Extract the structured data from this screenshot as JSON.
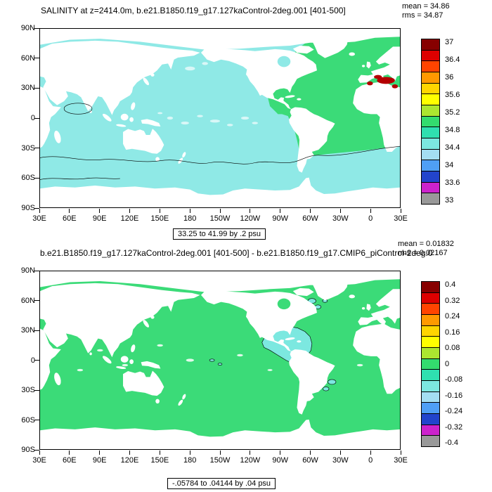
{
  "palette": [
    "#870000",
    "#DD0000",
    "#FF4400",
    "#FF9900",
    "#FFD500",
    "#FFFF00",
    "#ACE630",
    "#33DC6E",
    "#2FE0B0",
    "#7CE8E0",
    "#A4DEF2",
    "#4F9FF5",
    "#2244CC",
    "#CC22CC",
    "#999999"
  ],
  "map_colors": {
    "pacific": "#8FE9E6",
    "atlantic": "#3BDB78",
    "diff_base": "#3BDB78",
    "diff_anom": "#7CE8E0",
    "land": "#FFFFFF",
    "high": "#B30000",
    "speckle_top": "#D9F7F7",
    "speckle_bottom": "#FFFFFF"
  },
  "top_plot": {
    "title": "SALINITY at z=2414.0m, b.e21.B1850.f19_g17.127kaControl-2deg.001 [401-500]",
    "mean": "mean = 34.86",
    "rms": "rms = 34.87",
    "range_label": "33.25 to 41.99 by .2 psu",
    "y_ticks": [
      "90N",
      "60N",
      "30N",
      "0",
      "30S",
      "60S",
      "90S"
    ],
    "x_ticks": [
      "30E",
      "60E",
      "90E",
      "120E",
      "150E",
      "180",
      "150W",
      "120W",
      "90W",
      "60W",
      "30W",
      "0",
      "30E"
    ],
    "colorbar_labels": [
      "37",
      "36.4",
      "36",
      "35.6",
      "35.2",
      "34.8",
      "34.4",
      "34",
      "33.6",
      "33"
    ]
  },
  "bottom_plot": {
    "title": "b.e21.B1850.f19_g17.127kaControl-2deg.001 [401-500] - b.e21.B1850.f19_g17.CMIP6_piControl-2deg.0",
    "mean": "mean = 0.01832",
    "rms": "rms = 0.02167",
    "range_label": "-.05784 to .04144 by .04 psu",
    "y_ticks": [
      "90N",
      "60N",
      "30N",
      "0",
      "30S",
      "60S",
      "90S"
    ],
    "x_ticks": [
      "30E",
      "60E",
      "90E",
      "120E",
      "150E",
      "180",
      "150W",
      "120W",
      "90W",
      "60W",
      "30W",
      "0",
      "30E"
    ],
    "colorbar_labels": [
      "0.4",
      "0.32",
      "0.24",
      "0.16",
      "0.08",
      "0",
      "-0.08",
      "-0.16",
      "-0.24",
      "-0.32",
      "-0.4"
    ]
  },
  "chart_data": [
    {
      "type": "heatmap",
      "title": "SALINITY at z=2414.0m, b.e21.B1850.f19_g17.127kaControl-2deg.001 [401-500]",
      "projection": "cylindrical equidistant world map, longitude 30E eastward around to 30E, latitude 90S to 90N",
      "units": "psu",
      "mean": 34.86,
      "rms": 34.87,
      "levels": "33.25 to 41.99 by .2 psu",
      "colorbar_ticks": [
        37,
        36.4,
        36,
        35.6,
        35.2,
        34.8,
        34.4,
        34,
        33.6,
        33
      ],
      "x_ticks_deg": [
        "30E",
        "60E",
        "90E",
        "120E",
        "150E",
        "180",
        "150W",
        "120W",
        "90W",
        "60W",
        "30W",
        "0",
        "30E"
      ],
      "y_ticks_deg": [
        "90N",
        "60N",
        "30N",
        "0",
        "30S",
        "60S",
        "90S"
      ],
      "legend_position": "right vertical colorbar",
      "features": [
        {
          "region": "Pacific and Indian Ocean basins",
          "approx_value_psu": 34.7,
          "color": "pale cyan"
        },
        {
          "region": "Atlantic Ocean (65N to ~40S incl. Gulf of Mexico, Caribbean, Norwegian Sea)",
          "approx_value_psu": 35.0,
          "color": "green"
        },
        {
          "region": "Mediterranean / Gibraltar outflow",
          "approx_value_psu": 37,
          "color": "dark red"
        },
        {
          "region": "Southern Ocean with wavy isohaline contour near 45S",
          "approx_value_psu": 34.7,
          "color": "cyan"
        },
        {
          "region": "Arabian Sea closed contour loop",
          "approx_value_psu": 34.8,
          "color": "cyan"
        }
      ]
    },
    {
      "type": "heatmap",
      "title": "b.e21.B1850.f19_g17.127kaControl-2deg.001 [401-500] - b.e21.B1850.f19_g17.CMIP6_piControl-2deg.0 (difference map, title clipped at right edge)",
      "projection": "cylindrical equidistant world map, longitude 30E eastward around to 30E, latitude 90S to 90N",
      "units": "psu",
      "mean": 0.01832,
      "rms": 0.02167,
      "levels": "-.05784 to .04144 by .04 psu",
      "colorbar_ticks": [
        0.4,
        0.32,
        0.24,
        0.16,
        0.08,
        0,
        -0.08,
        -0.16,
        -0.24,
        -0.32,
        -0.4
      ],
      "x_ticks_deg": [
        "30E",
        "60E",
        "90E",
        "120E",
        "150E",
        "180",
        "150W",
        "120W",
        "90W",
        "60W",
        "30W",
        "0",
        "30E"
      ],
      "y_ticks_deg": [
        "90N",
        "60N",
        "30N",
        "0",
        "30S",
        "60S",
        "90S"
      ],
      "legend_position": "right vertical colorbar",
      "features": [
        {
          "region": "global ocean",
          "approx_value_psu": 0.04,
          "color": "green"
        },
        {
          "region": "Gulf of Mexico, Caribbean and tropical west Atlantic (outlined by black contour)",
          "approx_value_psu": -0.04,
          "color": "cyan"
        },
        {
          "region": "Labrador Sea / N Atlantic specks",
          "approx_value_psu": -0.04,
          "color": "cyan"
        },
        {
          "region": "SW Atlantic off Brazil/Argentina specks",
          "approx_value_psu": -0.04,
          "color": "cyan"
        }
      ]
    }
  ]
}
